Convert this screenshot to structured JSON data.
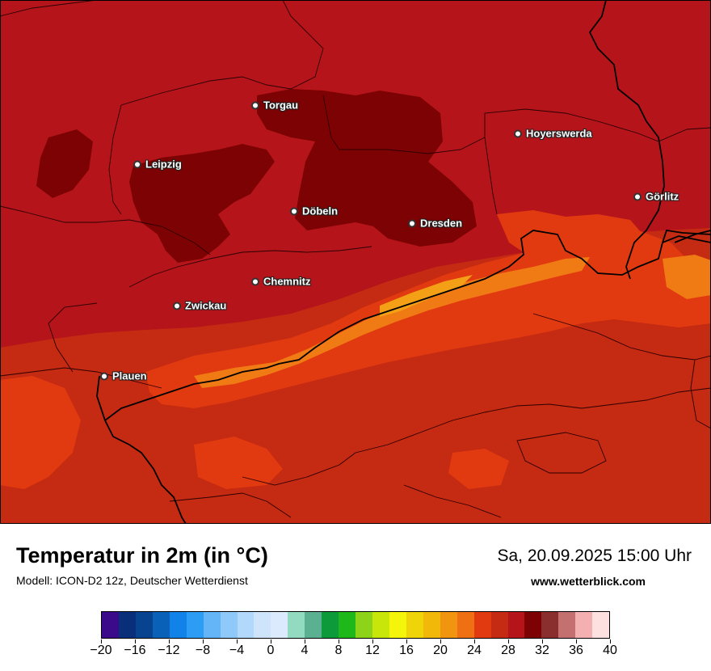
{
  "map": {
    "cities": [
      {
        "id": "torgau",
        "name": "Torgau"
      },
      {
        "id": "leipzig",
        "name": "Leipzig"
      },
      {
        "id": "hoyerswerda",
        "name": "Hoyerswerda"
      },
      {
        "id": "goerlitz",
        "name": "Görlitz"
      },
      {
        "id": "doebeln",
        "name": "Döbeln"
      },
      {
        "id": "dresden",
        "name": "Dresden"
      },
      {
        "id": "chemnitz",
        "name": "Chemnitz"
      },
      {
        "id": "zwickau",
        "name": "Zwickau"
      },
      {
        "id": "plauen",
        "name": "Plauen"
      }
    ],
    "colors": {
      "background": "#b5151a",
      "hot": "#7d0203",
      "warm": "#c52a12",
      "mid": "#e23a10",
      "cool": "#f07a14",
      "coolest": "#f4a016",
      "border": "#000000",
      "region_border": "#2a0000"
    }
  },
  "footer": {
    "title": "Temperatur in 2m (in °C)",
    "subtitle": "Modell: ICON-D2 12z, Deutscher Wetterdienst",
    "datetime": "Sa, 20.09.2025 15:00 Uhr",
    "website": "www.wetterblick.com"
  },
  "legend": {
    "colors": [
      "#3b0a8a",
      "#0a2f7a",
      "#07438f",
      "#0a62b8",
      "#1183e8",
      "#2c9cf5",
      "#64b5f7",
      "#8fc9f9",
      "#b2d8fb",
      "#cde4fb",
      "#dbeafc",
      "#93dbc0",
      "#5ab090",
      "#0c9a3a",
      "#1eb81a",
      "#8dd31a",
      "#c8e60a",
      "#f4f50a",
      "#f0d40a",
      "#f1b80a",
      "#f19410",
      "#ef7012",
      "#e23a10",
      "#c52a12",
      "#b5151a",
      "#7d0203",
      "#8b2e2e",
      "#c47070",
      "#f4b0b0",
      "#fde0e0"
    ],
    "ticks": [
      "−20",
      "−16",
      "−12",
      "−8",
      "−4",
      "0",
      "4",
      "8",
      "12",
      "16",
      "20",
      "24",
      "28",
      "32",
      "36",
      "40"
    ]
  }
}
